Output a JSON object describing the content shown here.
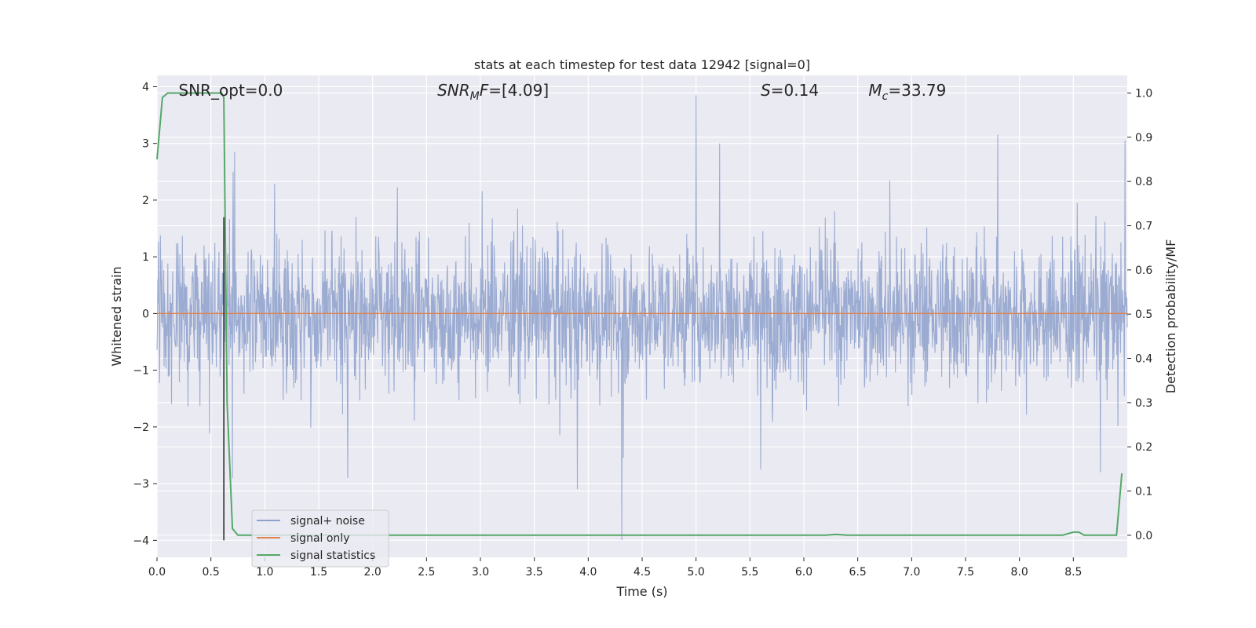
{
  "chart_data": {
    "type": "line",
    "title": "stats at each timestep for test data 12942 [signal=0]",
    "xlabel": "Time (s)",
    "ylabel": "Whitened strain",
    "y2label": "Detection probability/MF",
    "xlim": [
      0,
      9.0
    ],
    "ylim": [
      -4.3,
      4.2
    ],
    "y2lim": [
      -0.05,
      1.04
    ],
    "x_ticks": [
      0.0,
      0.5,
      1.0,
      1.5,
      2.0,
      2.5,
      3.0,
      3.5,
      4.0,
      4.5,
      5.0,
      5.5,
      6.0,
      6.5,
      7.0,
      7.5,
      8.0,
      8.5
    ],
    "x_tick_labels": [
      "0.0",
      "0.5",
      "1.0",
      "1.5",
      "2.0",
      "2.5",
      "3.0",
      "3.5",
      "4.0",
      "4.5",
      "5.0",
      "5.5",
      "6.0",
      "6.5",
      "7.0",
      "7.5",
      "8.0",
      "8.5"
    ],
    "y_ticks": [
      -4,
      -3,
      -2,
      -1,
      0,
      1,
      2,
      3,
      4
    ],
    "y_tick_labels": [
      "−4",
      "−3",
      "−2",
      "−1",
      "0",
      "1",
      "2",
      "3",
      "4"
    ],
    "y2_ticks": [
      0.0,
      0.1,
      0.2,
      0.3,
      0.4,
      0.5,
      0.6,
      0.7,
      0.8,
      0.9,
      1.0
    ],
    "y2_tick_labels": [
      "0.0",
      "0.1",
      "0.2",
      "0.3",
      "0.4",
      "0.5",
      "0.6",
      "0.7",
      "0.8",
      "0.9",
      "1.0"
    ],
    "grid": true,
    "legend_position": "lower-left",
    "annotations": [
      {
        "text": "SNR_opt=0.0",
        "x": 0.2
      },
      {
        "text": "SNR_MF=[4.09]",
        "x": 2.6
      },
      {
        "text": "S=0.14",
        "x": 5.6
      },
      {
        "text": "M_c=33.79",
        "x": 6.6
      }
    ],
    "vline": {
      "x": 0.62,
      "y": [
        -4,
        1.7
      ],
      "color": "#222222"
    },
    "series": [
      {
        "name": "signal+ noise",
        "color": "#8da0cb",
        "axis": "left",
        "kind": "noise",
        "x_range": [
          0,
          9.0
        ],
        "typical_band": [
          -1.6,
          1.5
        ],
        "peaks": [
          {
            "x": 4.31,
            "y": -4.0
          },
          {
            "x": 5.0,
            "y": 3.85
          },
          {
            "x": 3.9,
            "y": -3.1
          },
          {
            "x": 7.8,
            "y": 3.15
          },
          {
            "x": 8.98,
            "y": 3.05
          },
          {
            "x": 1.77,
            "y": -2.9
          },
          {
            "x": 0.7,
            "y": -2.9
          },
          {
            "x": 0.72,
            "y": 2.85
          },
          {
            "x": 5.22,
            "y": 3.0
          },
          {
            "x": 8.75,
            "y": -2.8
          },
          {
            "x": 5.6,
            "y": -2.75
          }
        ]
      },
      {
        "name": "signal only",
        "color": "#dd8452",
        "axis": "left",
        "x": [
          0,
          9.0
        ],
        "y": [
          0,
          0
        ]
      },
      {
        "name": "signal statistics",
        "color": "#55a868",
        "axis": "right",
        "x": [
          0.0,
          0.05,
          0.1,
          0.2,
          0.5,
          0.55,
          0.6,
          0.62,
          0.65,
          0.7,
          0.75,
          1.0,
          6.2,
          6.3,
          6.4,
          8.4,
          8.5,
          8.55,
          8.6,
          8.9,
          8.95
        ],
        "y": [
          0.85,
          0.99,
          1.0,
          1.0,
          1.0,
          1.0,
          1.0,
          0.99,
          0.3,
          0.015,
          0.0,
          0.0,
          0.0,
          0.002,
          0.0,
          0.0,
          0.007,
          0.007,
          0.0,
          0.0,
          0.14
        ]
      }
    ]
  }
}
